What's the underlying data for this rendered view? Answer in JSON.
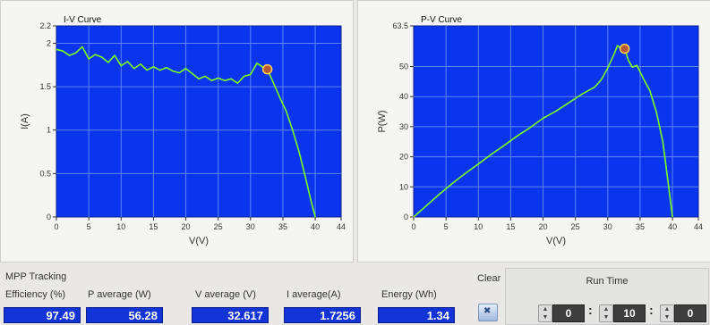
{
  "chart_data": [
    {
      "type": "line",
      "title": "I-V Curve",
      "xlabel": "V(V)",
      "ylabel": "I(A)",
      "xlim": [
        0,
        44
      ],
      "ylim": [
        0,
        2.2
      ],
      "xticks": [
        "0",
        "5",
        "10",
        "15",
        "20",
        "25",
        "30",
        "35",
        "40",
        "44"
      ],
      "yticks": [
        "0",
        "0.5",
        "1",
        "1.5",
        "2",
        "2.2"
      ],
      "grid": true,
      "series": [
        {
          "color": "#7cff1e",
          "x": [
            0,
            1,
            2,
            3,
            4,
            5,
            6,
            7,
            8,
            9,
            10,
            11,
            12,
            13,
            14,
            15,
            16,
            17,
            18,
            19,
            20,
            21,
            22,
            23,
            24,
            25,
            26,
            27,
            28,
            29,
            30,
            31,
            32,
            32.6,
            33.5,
            34.5,
            35.5,
            36.5,
            37.5,
            38.5,
            39.3,
            40
          ],
          "y": [
            1.93,
            1.91,
            1.86,
            1.89,
            1.96,
            1.82,
            1.87,
            1.84,
            1.78,
            1.86,
            1.74,
            1.79,
            1.71,
            1.76,
            1.69,
            1.73,
            1.69,
            1.72,
            1.68,
            1.66,
            1.71,
            1.65,
            1.59,
            1.62,
            1.57,
            1.6,
            1.57,
            1.59,
            1.54,
            1.62,
            1.64,
            1.77,
            1.72,
            1.7,
            1.55,
            1.38,
            1.22,
            1.0,
            0.75,
            0.45,
            0.2,
            0
          ]
        }
      ],
      "marker": {
        "x": 32.6,
        "y": 1.7,
        "color": "#b5583a"
      }
    },
    {
      "type": "line",
      "title": "P-V Curve",
      "xlabel": "V(V)",
      "ylabel": "P(W)",
      "xlim": [
        0,
        44
      ],
      "ylim": [
        0,
        63.5
      ],
      "xticks": [
        "0",
        "5",
        "10",
        "15",
        "20",
        "25",
        "30",
        "35",
        "40",
        "44"
      ],
      "yticks": [
        "0",
        "10",
        "20",
        "30",
        "40",
        "50",
        "63.5"
      ],
      "grid": true,
      "series": [
        {
          "color": "#7cff1e",
          "x": [
            0,
            2,
            4,
            6,
            8,
            10,
            12,
            14,
            16,
            18,
            20,
            22,
            24,
            26,
            28,
            29,
            30,
            31,
            31.5,
            32,
            32.6,
            33.2,
            33.8,
            34.5,
            35.5,
            36.5,
            37.5,
            38.5,
            39.3,
            40
          ],
          "y": [
            0,
            3.8,
            7.6,
            11.2,
            14.5,
            17.6,
            20.8,
            23.8,
            26.9,
            29.7,
            32.8,
            35.2,
            38.0,
            40.8,
            43.2,
            45.6,
            49.5,
            54.2,
            57.0,
            56.0,
            55.9,
            52.0,
            49.8,
            50.4,
            46.0,
            42.0,
            35.0,
            25.0,
            12.0,
            0
          ]
        }
      ],
      "marker": {
        "x": 32.6,
        "y": 55.9,
        "color": "#b5583a"
      }
    }
  ],
  "meters": {
    "efficiency": {
      "label_line1": "MPP Tracking",
      "label_line2": "Efficiency (%)",
      "value": "97.49"
    },
    "p_average": {
      "label": "P average  (W)",
      "value": "56.28"
    },
    "v_average": {
      "label": "V average (V)",
      "value": "32.617"
    },
    "i_average": {
      "label": "I average(A)",
      "value": "1.7256"
    },
    "energy": {
      "label": "Energy  (Wh)",
      "value": "1.34"
    }
  },
  "clear": {
    "label": "Clear",
    "icon": "clear-icon"
  },
  "run_time": {
    "title": "Run Time",
    "hours": "0",
    "minutes": "10",
    "seconds": "0",
    "separator": ":"
  }
}
